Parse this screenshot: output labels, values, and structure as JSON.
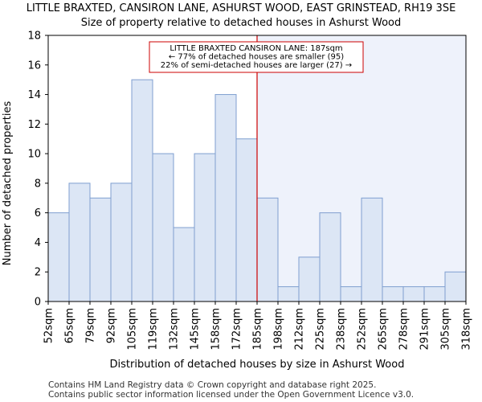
{
  "chart_data": {
    "type": "bar",
    "title_lines": [
      "LITTLE BRAXTED, CANSIRON LANE, ASHURST WOOD, EAST GRINSTEAD, RH19 3SE",
      "Size of property relative to detached houses in Ashurst Wood"
    ],
    "xlabel": "Distribution of detached houses by size in Ashurst Wood",
    "ylabel": "Number of detached properties",
    "x_tick_labels": [
      "52sqm",
      "65sqm",
      "79sqm",
      "92sqm",
      "105sqm",
      "119sqm",
      "132sqm",
      "145sqm",
      "158sqm",
      "172sqm",
      "185sqm",
      "198sqm",
      "212sqm",
      "225sqm",
      "238sqm",
      "252sqm",
      "265sqm",
      "278sqm",
      "291sqm",
      "305sqm",
      "318sqm"
    ],
    "values": [
      6,
      8,
      7,
      8,
      15,
      10,
      5,
      10,
      14,
      11,
      7,
      1,
      3,
      6,
      1,
      7,
      1,
      1,
      1,
      2
    ],
    "ylim": [
      0,
      18
    ],
    "y_ticks": [
      0,
      2,
      4,
      6,
      8,
      10,
      12,
      14,
      16,
      18
    ],
    "property_bin_position": 10,
    "annotation_lines": [
      "LITTLE BRAXTED CANSIRON LANE: 187sqm",
      "← 77% of detached houses are smaller (95)",
      "22% of semi-detached houses are larger (27) →"
    ],
    "footer_lines": [
      "Contains HM Land Registry data © Crown copyright and database right 2025.",
      "Contains public sector information licensed under the Open Government Licence v3.0."
    ],
    "colors": {
      "bar_fill": "#dce6f5",
      "bar_stroke": "#7f9fd0",
      "highlight_bg": "#eef2fb",
      "marker_line": "#cc0000",
      "annotation_border": "#cc0000",
      "axis": "#000000"
    }
  }
}
